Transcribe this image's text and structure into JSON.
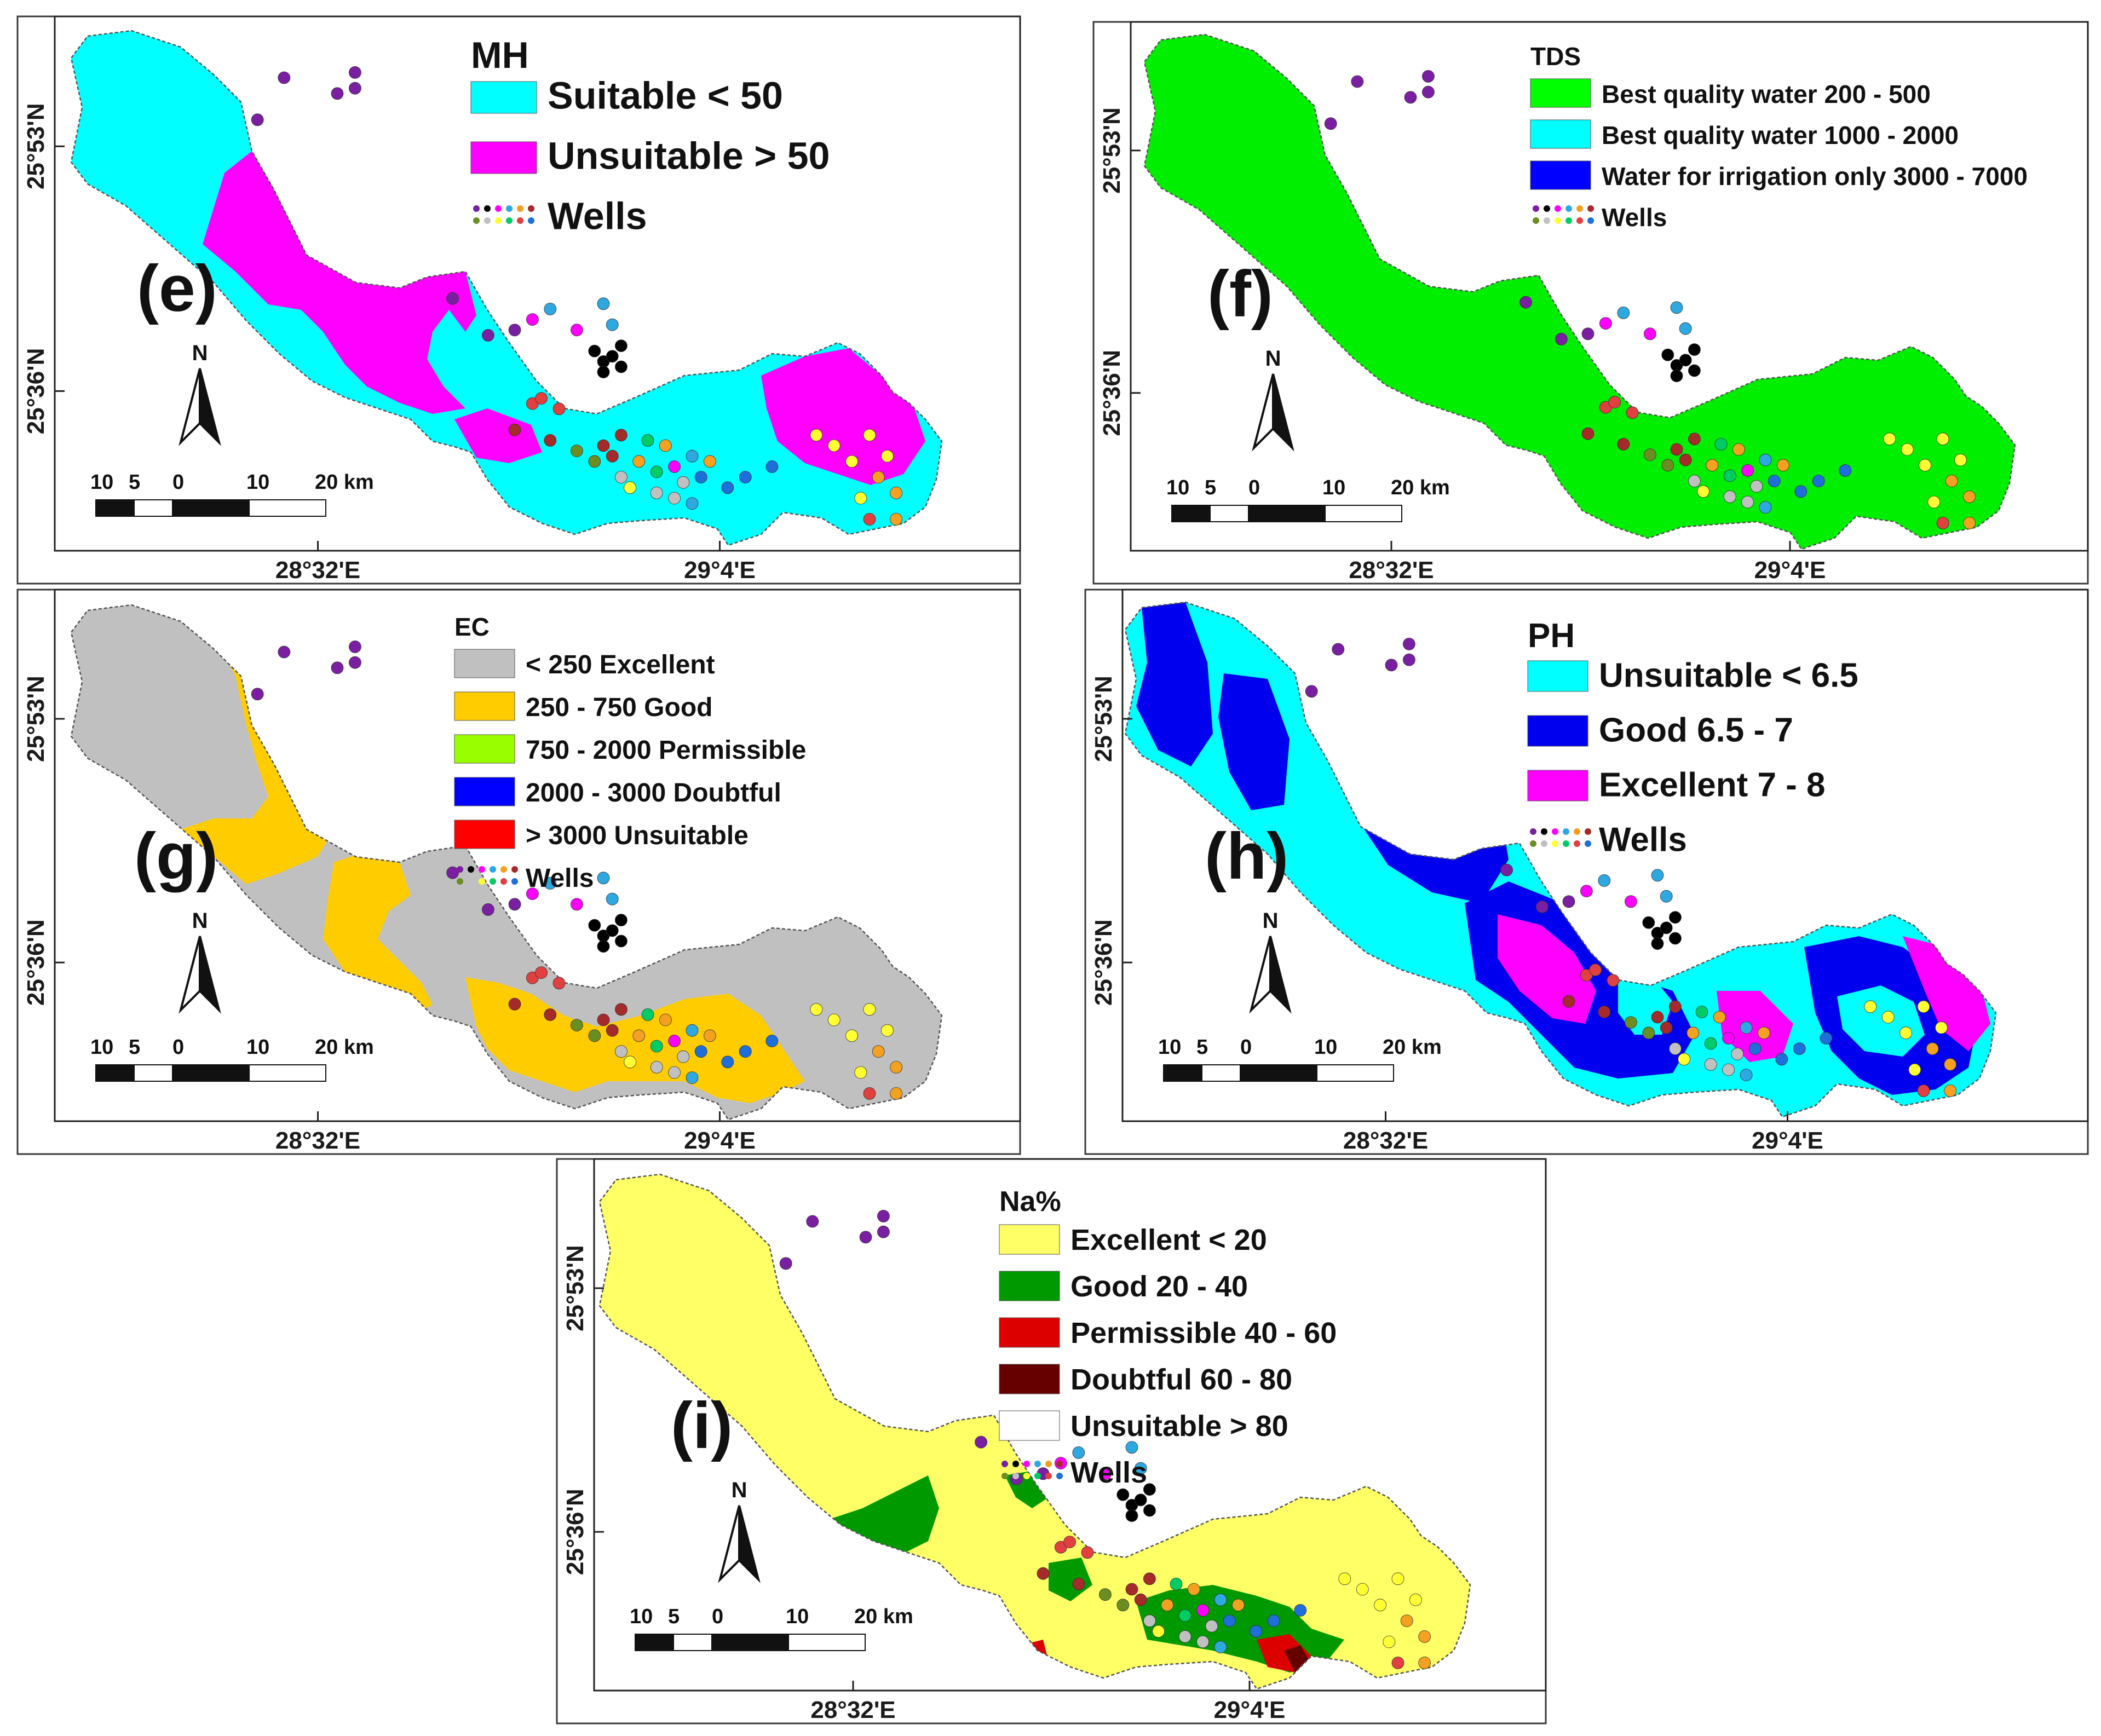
{
  "figure": {
    "x_ticks": [
      "28°32'E",
      "29°4'E"
    ],
    "y_ticks": [
      "25°53'N",
      "25°36'N"
    ],
    "north_label": "N",
    "scale_labels": [
      "10",
      "5",
      "0",
      "10",
      "20 km"
    ],
    "wells_label": "Wells",
    "wells_colors": [
      "#7b1fa2",
      "#000000",
      "#ff00ff",
      "#2ea8e0",
      "#f4a020",
      "#a52a2a",
      "#6b8e23",
      "#c0c0c0",
      "#ffff33",
      "#00cc66",
      "#e04040",
      "#1e6fd9"
    ],
    "well_points": [
      [
        0.21,
        0.18,
        "#7b1fa2"
      ],
      [
        0.24,
        0.1,
        "#7b1fa2"
      ],
      [
        0.3,
        0.13,
        "#7b1fa2"
      ],
      [
        0.32,
        0.09,
        "#7b1fa2"
      ],
      [
        0.32,
        0.12,
        "#7b1fa2"
      ],
      [
        0.43,
        0.52,
        "#7b1fa2"
      ],
      [
        0.47,
        0.59,
        "#7b1fa2"
      ],
      [
        0.5,
        0.58,
        "#7b1fa2"
      ],
      [
        0.52,
        0.56,
        "#ff00ff"
      ],
      [
        0.54,
        0.54,
        "#2ea8e0"
      ],
      [
        0.57,
        0.58,
        "#ff00ff"
      ],
      [
        0.6,
        0.53,
        "#2ea8e0"
      ],
      [
        0.61,
        0.57,
        "#2ea8e0"
      ],
      [
        0.59,
        0.62,
        "#000000"
      ],
      [
        0.6,
        0.64,
        "#000000"
      ],
      [
        0.61,
        0.63,
        "#000000"
      ],
      [
        0.62,
        0.61,
        "#000000"
      ],
      [
        0.62,
        0.65,
        "#000000"
      ],
      [
        0.6,
        0.66,
        "#000000"
      ],
      [
        0.52,
        0.72,
        "#e04040"
      ],
      [
        0.53,
        0.71,
        "#e04040"
      ],
      [
        0.55,
        0.73,
        "#e04040"
      ],
      [
        0.5,
        0.77,
        "#a52a2a"
      ],
      [
        0.54,
        0.79,
        "#a52a2a"
      ],
      [
        0.57,
        0.81,
        "#6b8e23"
      ],
      [
        0.59,
        0.83,
        "#6b8e23"
      ],
      [
        0.6,
        0.8,
        "#a52a2a"
      ],
      [
        0.61,
        0.82,
        "#a52a2a"
      ],
      [
        0.62,
        0.78,
        "#a52a2a"
      ],
      [
        0.62,
        0.86,
        "#c0c0c0"
      ],
      [
        0.63,
        0.88,
        "#ffff33"
      ],
      [
        0.64,
        0.83,
        "#f4a020"
      ],
      [
        0.65,
        0.79,
        "#00cc66"
      ],
      [
        0.66,
        0.85,
        "#00cc66"
      ],
      [
        0.67,
        0.8,
        "#f4a020"
      ],
      [
        0.68,
        0.84,
        "#ff00ff"
      ],
      [
        0.69,
        0.87,
        "#c0c0c0"
      ],
      [
        0.7,
        0.82,
        "#2ea8e0"
      ],
      [
        0.71,
        0.86,
        "#1e6fd9"
      ],
      [
        0.72,
        0.83,
        "#f4a020"
      ],
      [
        0.66,
        0.89,
        "#c0c0c0"
      ],
      [
        0.68,
        0.9,
        "#c0c0c0"
      ],
      [
        0.7,
        0.91,
        "#2ea8e0"
      ],
      [
        0.74,
        0.88,
        "#1e6fd9"
      ],
      [
        0.76,
        0.86,
        "#1e6fd9"
      ],
      [
        0.79,
        0.84,
        "#1e6fd9"
      ],
      [
        0.84,
        0.78,
        "#ffff33"
      ],
      [
        0.86,
        0.8,
        "#ffff33"
      ],
      [
        0.88,
        0.83,
        "#ffff33"
      ],
      [
        0.9,
        0.78,
        "#ffff33"
      ],
      [
        0.91,
        0.86,
        "#f4a020"
      ],
      [
        0.92,
        0.82,
        "#ffff33"
      ],
      [
        0.93,
        0.89,
        "#f4a020"
      ],
      [
        0.89,
        0.9,
        "#ffff33"
      ],
      [
        0.9,
        0.94,
        "#e04040"
      ],
      [
        0.93,
        0.94,
        "#f4a020"
      ]
    ]
  },
  "panels": [
    {
      "id": "e",
      "label": "(e)",
      "legend_title": "MH",
      "legend_size": "large",
      "legend": [
        {
          "text": "Suitable < 50",
          "color": "#00ffff"
        },
        {
          "text": "Unsuitable > 50",
          "color": "#ff00ff"
        }
      ],
      "base_color": "#00ffff",
      "zone_color": "#ff00ff",
      "zone_style": "mh"
    },
    {
      "id": "f",
      "label": "(f)",
      "legend_title": "TDS",
      "legend_size": "small",
      "legend": [
        {
          "text": "Best quality water 200 - 500",
          "color": "#00ff00"
        },
        {
          "text": "Best quality water 1000 - 2000",
          "color": "#00ffff"
        },
        {
          "text": "Water for irrigation only 3000 - 7000",
          "color": "#0000ff"
        }
      ],
      "base_color": "#00ee00",
      "zone_color": "#00ee00",
      "zone_style": "none"
    },
    {
      "id": "g",
      "label": "(g)",
      "legend_title": "EC",
      "legend_size": "small",
      "legend": [
        {
          "text": "< 250 Excellent",
          "color": "#c0c0c0"
        },
        {
          "text": "250 - 750 Good",
          "color": "#ffcc00"
        },
        {
          "text": "750 - 2000 Permissible",
          "color": "#99ff00"
        },
        {
          "text": "2000 - 3000 Doubtful",
          "color": "#0000ff"
        },
        {
          "text": "> 3000 Unsuitable",
          "color": "#ff0000"
        }
      ],
      "base_color": "#c0c0c0",
      "zone_color": "#ffcc00",
      "zone_style": "ec"
    },
    {
      "id": "h",
      "label": "(h)",
      "legend_title": "PH",
      "legend_size": "large",
      "legend": [
        {
          "text": "Unsuitable < 6.5",
          "color": "#00ffff"
        },
        {
          "text": "Good 6.5 - 7",
          "color": "#0000ee"
        },
        {
          "text": "Excellent 7 - 8",
          "color": "#ff00ff"
        }
      ],
      "base_color": "#00ffff",
      "zone_color": "#0000ee",
      "zone_style": "ph"
    },
    {
      "id": "i",
      "label": "(i)",
      "legend_title": "Na%",
      "legend_size": "medium",
      "legend": [
        {
          "text": "Excellent < 20",
          "color": "#ffff66"
        },
        {
          "text": "Good 20 - 40",
          "color": "#009900"
        },
        {
          "text": "Permissible 40 - 60",
          "color": "#dd0000"
        },
        {
          "text": "Doubtful 60 - 80",
          "color": "#660000"
        },
        {
          "text": "Unsuitable > 80",
          "color": "#ffffff"
        }
      ],
      "base_color": "#ffff66",
      "zone_color": "#009900",
      "zone_style": "na"
    }
  ]
}
